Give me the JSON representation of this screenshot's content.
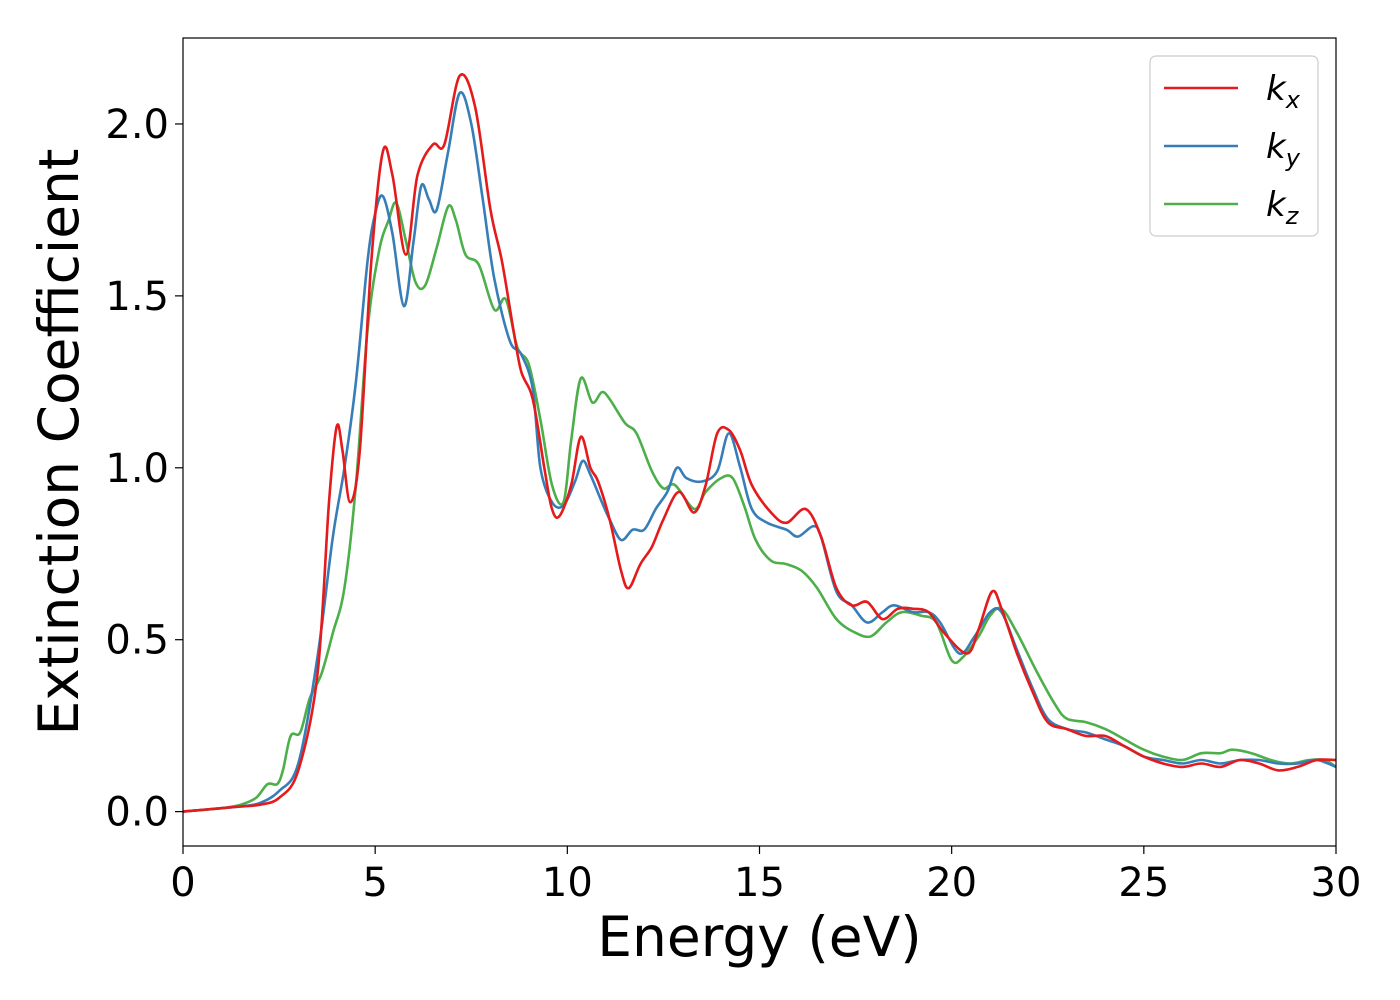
{
  "chart_data": {
    "type": "line",
    "title": "",
    "xlabel": "Energy (eV)",
    "ylabel": "Extinction Coefficient",
    "xlim": [
      0,
      30
    ],
    "ylim": [
      -0.1,
      2.25
    ],
    "xticks": [
      0,
      5,
      10,
      15,
      20,
      25,
      30
    ],
    "xtick_labels": [
      "0",
      "5",
      "10",
      "15",
      "20",
      "25",
      "30"
    ],
    "yticks": [
      0.0,
      0.5,
      1.0,
      1.5,
      2.0
    ],
    "ytick_labels": [
      "0.0",
      "0.5",
      "1.0",
      "1.5",
      "2.0"
    ],
    "grid": false,
    "legend_position": "top-right",
    "series": [
      {
        "name": "k_x",
        "label_base": "k",
        "label_sub": "x",
        "color": "#e41a1c",
        "points": [
          [
            0,
            0
          ],
          [
            1,
            0.01
          ],
          [
            1.5,
            0.015
          ],
          [
            2,
            0.02
          ],
          [
            2.5,
            0.04
          ],
          [
            3,
            0.12
          ],
          [
            3.5,
            0.4
          ],
          [
            3.8,
            0.9
          ],
          [
            4.0,
            1.12
          ],
          [
            4.15,
            1.05
          ],
          [
            4.35,
            0.9
          ],
          [
            4.6,
            1.05
          ],
          [
            4.9,
            1.6
          ],
          [
            5.2,
            1.92
          ],
          [
            5.45,
            1.85
          ],
          [
            5.8,
            1.62
          ],
          [
            6.1,
            1.85
          ],
          [
            6.5,
            1.94
          ],
          [
            6.8,
            1.94
          ],
          [
            7.2,
            2.14
          ],
          [
            7.6,
            2.05
          ],
          [
            8.0,
            1.75
          ],
          [
            8.3,
            1.6
          ],
          [
            8.6,
            1.4
          ],
          [
            8.8,
            1.28
          ],
          [
            9.1,
            1.2
          ],
          [
            9.4,
            1.0
          ],
          [
            9.6,
            0.88
          ],
          [
            9.8,
            0.86
          ],
          [
            10.1,
            0.95
          ],
          [
            10.35,
            1.09
          ],
          [
            10.6,
            1.0
          ],
          [
            10.8,
            0.96
          ],
          [
            11.1,
            0.85
          ],
          [
            11.4,
            0.7
          ],
          [
            11.6,
            0.65
          ],
          [
            11.9,
            0.72
          ],
          [
            12.2,
            0.77
          ],
          [
            12.5,
            0.85
          ],
          [
            12.9,
            0.93
          ],
          [
            13.3,
            0.87
          ],
          [
            13.6,
            0.95
          ],
          [
            13.9,
            1.1
          ],
          [
            14.2,
            1.11
          ],
          [
            14.5,
            1.05
          ],
          [
            14.8,
            0.95
          ],
          [
            15.3,
            0.87
          ],
          [
            15.7,
            0.84
          ],
          [
            16.2,
            0.88
          ],
          [
            16.6,
            0.8
          ],
          [
            17.0,
            0.65
          ],
          [
            17.4,
            0.6
          ],
          [
            17.8,
            0.61
          ],
          [
            18.2,
            0.56
          ],
          [
            18.6,
            0.59
          ],
          [
            19.0,
            0.59
          ],
          [
            19.4,
            0.58
          ],
          [
            19.8,
            0.52
          ],
          [
            20.4,
            0.46
          ],
          [
            20.7,
            0.53
          ],
          [
            21.05,
            0.64
          ],
          [
            21.3,
            0.59
          ],
          [
            21.7,
            0.46
          ],
          [
            22.1,
            0.35
          ],
          [
            22.5,
            0.26
          ],
          [
            23.0,
            0.24
          ],
          [
            23.5,
            0.22
          ],
          [
            24.0,
            0.22
          ],
          [
            24.5,
            0.19
          ],
          [
            25.0,
            0.16
          ],
          [
            25.5,
            0.14
          ],
          [
            26.0,
            0.13
          ],
          [
            26.5,
            0.14
          ],
          [
            27.0,
            0.13
          ],
          [
            27.5,
            0.15
          ],
          [
            28.0,
            0.14
          ],
          [
            28.5,
            0.12
          ],
          [
            29.0,
            0.13
          ],
          [
            29.5,
            0.15
          ],
          [
            30,
            0.15
          ]
        ]
      },
      {
        "name": "k_y",
        "label_base": "k",
        "label_sub": "y",
        "color": "#377eb8",
        "points": [
          [
            0,
            0
          ],
          [
            1,
            0.01
          ],
          [
            1.5,
            0.015
          ],
          [
            2,
            0.025
          ],
          [
            2.5,
            0.06
          ],
          [
            3,
            0.14
          ],
          [
            3.5,
            0.45
          ],
          [
            3.9,
            0.8
          ],
          [
            4.2,
            1.0
          ],
          [
            4.5,
            1.25
          ],
          [
            4.8,
            1.6
          ],
          [
            5.0,
            1.74
          ],
          [
            5.2,
            1.79
          ],
          [
            5.45,
            1.68
          ],
          [
            5.75,
            1.47
          ],
          [
            6.0,
            1.66
          ],
          [
            6.2,
            1.82
          ],
          [
            6.4,
            1.78
          ],
          [
            6.6,
            1.75
          ],
          [
            6.9,
            1.92
          ],
          [
            7.2,
            2.09
          ],
          [
            7.5,
            2.0
          ],
          [
            7.8,
            1.78
          ],
          [
            8.1,
            1.55
          ],
          [
            8.5,
            1.37
          ],
          [
            8.8,
            1.33
          ],
          [
            9.1,
            1.23
          ],
          [
            9.3,
            1.0
          ],
          [
            9.6,
            0.9
          ],
          [
            9.9,
            0.89
          ],
          [
            10.2,
            0.96
          ],
          [
            10.4,
            1.02
          ],
          [
            10.6,
            0.98
          ],
          [
            10.9,
            0.9
          ],
          [
            11.1,
            0.85
          ],
          [
            11.4,
            0.79
          ],
          [
            11.7,
            0.82
          ],
          [
            12.0,
            0.82
          ],
          [
            12.3,
            0.88
          ],
          [
            12.6,
            0.93
          ],
          [
            12.85,
            1.0
          ],
          [
            13.1,
            0.97
          ],
          [
            13.5,
            0.96
          ],
          [
            13.9,
            0.99
          ],
          [
            14.2,
            1.1
          ],
          [
            14.5,
            1.0
          ],
          [
            14.8,
            0.88
          ],
          [
            15.2,
            0.84
          ],
          [
            15.7,
            0.82
          ],
          [
            16.0,
            0.8
          ],
          [
            16.4,
            0.83
          ],
          [
            16.6,
            0.8
          ],
          [
            17.0,
            0.64
          ],
          [
            17.4,
            0.6
          ],
          [
            17.8,
            0.55
          ],
          [
            18.2,
            0.58
          ],
          [
            18.5,
            0.6
          ],
          [
            19.0,
            0.58
          ],
          [
            19.4,
            0.58
          ],
          [
            19.7,
            0.55
          ],
          [
            20.2,
            0.46
          ],
          [
            20.6,
            0.51
          ],
          [
            21.0,
            0.58
          ],
          [
            21.3,
            0.58
          ],
          [
            21.7,
            0.47
          ],
          [
            22.1,
            0.36
          ],
          [
            22.5,
            0.27
          ],
          [
            23.0,
            0.24
          ],
          [
            23.5,
            0.23
          ],
          [
            24.0,
            0.21
          ],
          [
            24.5,
            0.19
          ],
          [
            25.0,
            0.16
          ],
          [
            25.5,
            0.15
          ],
          [
            26.0,
            0.14
          ],
          [
            26.5,
            0.15
          ],
          [
            27.0,
            0.14
          ],
          [
            27.5,
            0.15
          ],
          [
            28.0,
            0.15
          ],
          [
            28.5,
            0.14
          ],
          [
            29.0,
            0.14
          ],
          [
            29.5,
            0.15
          ],
          [
            30,
            0.13
          ]
        ]
      },
      {
        "name": "k_z",
        "label_base": "k",
        "label_sub": "z",
        "color": "#4daf4a",
        "points": [
          [
            0,
            0
          ],
          [
            1,
            0.01
          ],
          [
            1.5,
            0.02
          ],
          [
            1.9,
            0.04
          ],
          [
            2.2,
            0.08
          ],
          [
            2.45,
            0.08
          ],
          [
            2.6,
            0.12
          ],
          [
            2.8,
            0.22
          ],
          [
            3.05,
            0.23
          ],
          [
            3.3,
            0.33
          ],
          [
            3.6,
            0.4
          ],
          [
            3.9,
            0.52
          ],
          [
            4.2,
            0.65
          ],
          [
            4.5,
            0.95
          ],
          [
            4.8,
            1.4
          ],
          [
            5.1,
            1.63
          ],
          [
            5.35,
            1.72
          ],
          [
            5.55,
            1.77
          ],
          [
            5.8,
            1.66
          ],
          [
            6.05,
            1.54
          ],
          [
            6.3,
            1.53
          ],
          [
            6.6,
            1.64
          ],
          [
            6.9,
            1.76
          ],
          [
            7.1,
            1.72
          ],
          [
            7.35,
            1.62
          ],
          [
            7.7,
            1.59
          ],
          [
            8.1,
            1.46
          ],
          [
            8.4,
            1.49
          ],
          [
            8.7,
            1.35
          ],
          [
            9.0,
            1.3
          ],
          [
            9.3,
            1.14
          ],
          [
            9.6,
            0.95
          ],
          [
            9.9,
            0.9
          ],
          [
            10.1,
            1.08
          ],
          [
            10.35,
            1.26
          ],
          [
            10.65,
            1.19
          ],
          [
            10.9,
            1.22
          ],
          [
            11.1,
            1.2
          ],
          [
            11.5,
            1.13
          ],
          [
            11.8,
            1.1
          ],
          [
            12.2,
            0.99
          ],
          [
            12.5,
            0.94
          ],
          [
            12.8,
            0.95
          ],
          [
            13.3,
            0.88
          ],
          [
            13.6,
            0.93
          ],
          [
            14.0,
            0.97
          ],
          [
            14.3,
            0.97
          ],
          [
            14.6,
            0.89
          ],
          [
            14.9,
            0.79
          ],
          [
            15.3,
            0.73
          ],
          [
            15.7,
            0.72
          ],
          [
            16.1,
            0.7
          ],
          [
            16.5,
            0.65
          ],
          [
            17.0,
            0.56
          ],
          [
            17.5,
            0.52
          ],
          [
            17.9,
            0.51
          ],
          [
            18.3,
            0.55
          ],
          [
            18.7,
            0.58
          ],
          [
            19.2,
            0.57
          ],
          [
            19.6,
            0.55
          ],
          [
            20.0,
            0.44
          ],
          [
            20.3,
            0.45
          ],
          [
            20.7,
            0.51
          ],
          [
            21.0,
            0.57
          ],
          [
            21.3,
            0.59
          ],
          [
            21.7,
            0.52
          ],
          [
            22.2,
            0.41
          ],
          [
            22.7,
            0.31
          ],
          [
            23.0,
            0.27
          ],
          [
            23.5,
            0.26
          ],
          [
            24.0,
            0.24
          ],
          [
            24.5,
            0.21
          ],
          [
            25.0,
            0.18
          ],
          [
            25.5,
            0.16
          ],
          [
            26.0,
            0.15
          ],
          [
            26.5,
            0.17
          ],
          [
            27.0,
            0.17
          ],
          [
            27.3,
            0.18
          ],
          [
            27.8,
            0.17
          ],
          [
            28.3,
            0.15
          ],
          [
            28.8,
            0.14
          ],
          [
            29.3,
            0.15
          ],
          [
            29.7,
            0.15
          ],
          [
            30,
            0.13
          ]
        ]
      }
    ]
  }
}
